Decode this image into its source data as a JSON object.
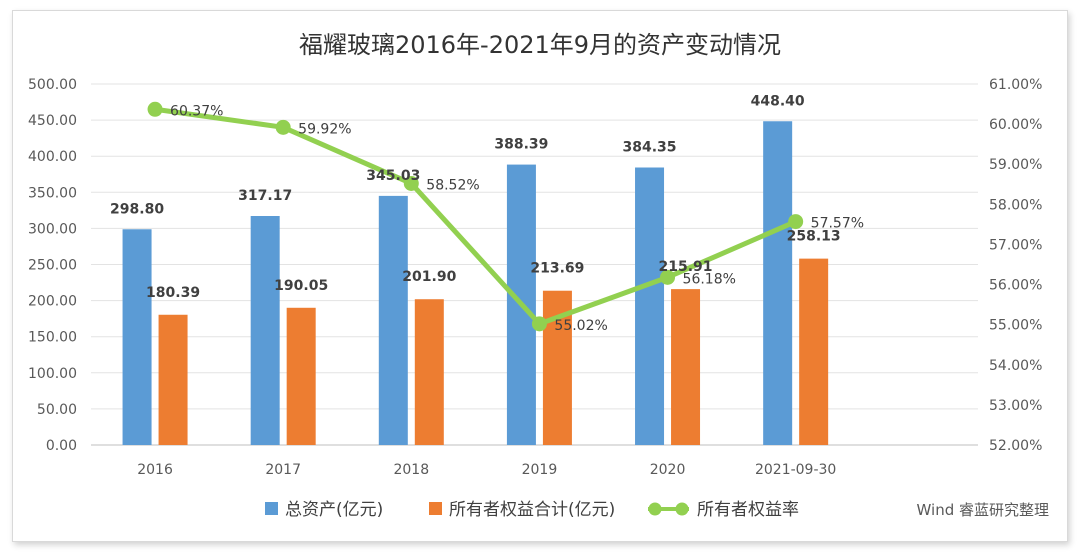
{
  "chart_data": {
    "type": "bar",
    "title": "福耀玻璃2016年-2021年9月的资产变动情况",
    "categories": [
      "2016",
      "2017",
      "2018",
      "2019",
      "2020",
      "2021-09-30"
    ],
    "series": [
      {
        "name": "总资产(亿元)",
        "type": "bar",
        "axis": "left",
        "color": "#5B9BD5",
        "values": [
          298.8,
          317.17,
          345.03,
          388.39,
          384.35,
          448.4
        ],
        "labels": [
          "298.80",
          "317.17",
          "345.03",
          "388.39",
          "384.35",
          "448.40"
        ]
      },
      {
        "name": "所有者权益合计(亿元)",
        "type": "bar",
        "axis": "left",
        "color": "#ED7D31",
        "values": [
          180.39,
          190.05,
          201.9,
          213.69,
          215.91,
          258.13
        ],
        "labels": [
          "180.39",
          "190.05",
          "201.90",
          "213.69",
          "215.91",
          "258.13"
        ]
      },
      {
        "name": "所有者权益率",
        "type": "line",
        "axis": "right",
        "color": "#92D050",
        "values": [
          60.37,
          59.92,
          58.52,
          55.02,
          56.18,
          57.57
        ],
        "labels": [
          "60.37%",
          "59.92%",
          "58.52%",
          "55.02%",
          "56.18%",
          "57.57%"
        ]
      }
    ],
    "y_left": {
      "min": 0,
      "max": 500,
      "ticks": [
        "0.00",
        "50.00",
        "100.00",
        "150.00",
        "200.00",
        "250.00",
        "300.00",
        "350.00",
        "400.00",
        "450.00",
        "500.00"
      ]
    },
    "y_right": {
      "min": 52,
      "max": 61,
      "ticks": [
        "52.00%",
        "53.00%",
        "54.00%",
        "55.00%",
        "56.00%",
        "57.00%",
        "58.00%",
        "59.00%",
        "60.00%",
        "61.00%"
      ]
    },
    "grid": true,
    "legend_position": "bottom"
  },
  "source_note": "Wind 睿蓝研究整理"
}
